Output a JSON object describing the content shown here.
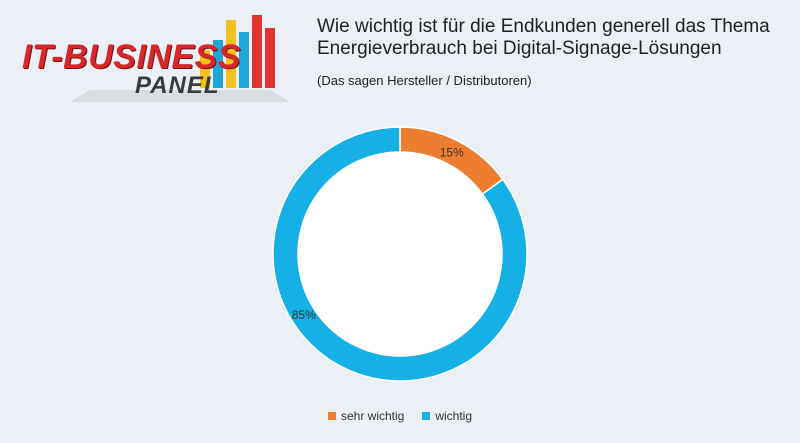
{
  "logo": {
    "line1": "IT-BUSINESS",
    "line2": "PANEL"
  },
  "chart_data": {
    "type": "pie",
    "title": "Wie wichtig ist für die Endkunden generell das Thema Energieverbrauch bei Digital-Signage-Lösungen",
    "subtitle": "(Das sagen Hersteller / Distributoren)",
    "categories": [
      "sehr wichtig",
      "wichtig"
    ],
    "values": [
      15,
      85
    ],
    "labels": [
      "15%",
      "85%"
    ],
    "colors": [
      "#ed7d31",
      "#15b0e6"
    ],
    "donut": true,
    "legend_position": "bottom"
  }
}
